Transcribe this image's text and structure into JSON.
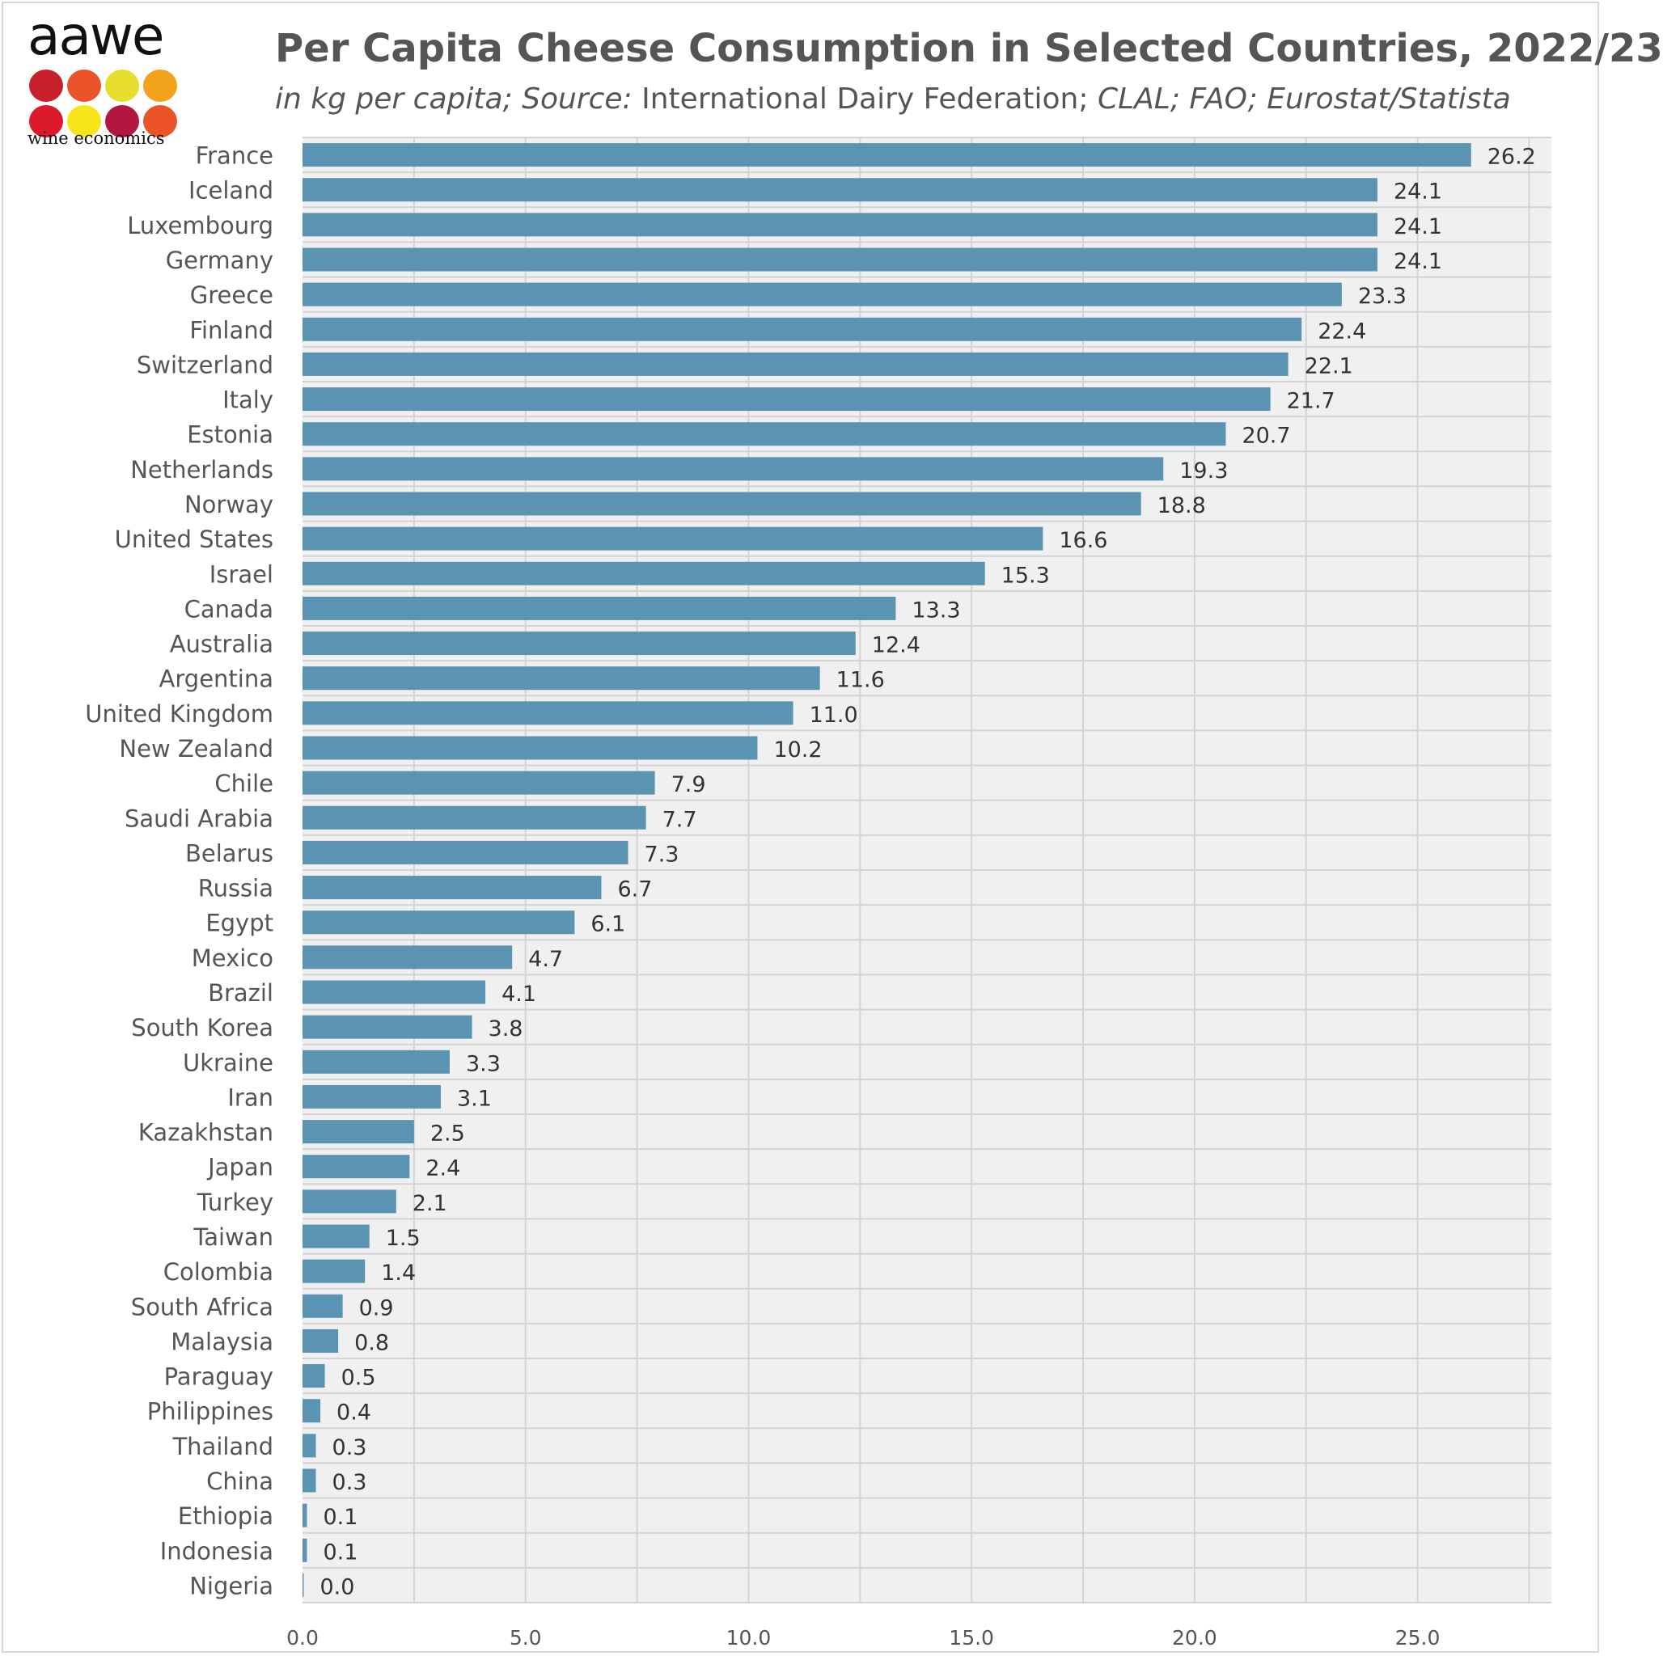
{
  "logo": {
    "word": "aawe",
    "tagline": "wine economics",
    "dot_colors": [
      "#c8202a",
      "#ea5428",
      "#e6dd2c",
      "#f3a21c",
      "#dc1a2a",
      "#f6e51b",
      "#b2183f",
      "#ea5428"
    ]
  },
  "header": {
    "title": "Per Capita Cheese Consumption in Selected Countries, 2022/23",
    "subtitle_part1": "in kg per capita; Source: ",
    "subtitle_part2": "International Dairy Federation; ",
    "subtitle_part3": "CLAL; FAO; Eurostat/Statista"
  },
  "colors": {
    "bar": "#5b93b2",
    "plot_background": "#f0f0f0",
    "grid": "#d4d4d4",
    "text": "#555555"
  },
  "chart_data": {
    "type": "bar",
    "orientation": "horizontal",
    "title": "Per Capita Cheese Consumption in Selected Countries, 2022/23",
    "xlabel": "",
    "ylabel": "",
    "xlim": [
      0,
      28
    ],
    "xticks": [
      "0.0",
      "5.0",
      "10.0",
      "15.0",
      "20.0",
      "25.0"
    ],
    "grid": true,
    "legend": "none",
    "categories": [
      "France",
      "Iceland",
      "Luxembourg",
      "Germany",
      "Greece",
      "Finland",
      "Switzerland",
      "Italy",
      "Estonia",
      "Netherlands",
      "Norway",
      "United States",
      "Israel",
      "Canada",
      "Australia",
      "Argentina",
      "United Kingdom",
      "New Zealand",
      "Chile",
      "Saudi Arabia",
      "Belarus",
      "Russia",
      "Egypt",
      "Mexico",
      "Brazil",
      "South Korea",
      "Ukraine",
      "Iran",
      "Kazakhstan",
      "Japan",
      "Turkey",
      "Taiwan",
      "Colombia",
      "South Africa",
      "Malaysia",
      "Paraguay",
      "Philippines",
      "Thailand",
      "China",
      "Ethiopia",
      "Indonesia",
      "Nigeria"
    ],
    "values": [
      26.2,
      24.1,
      24.1,
      24.1,
      23.3,
      22.4,
      22.1,
      21.7,
      20.7,
      19.3,
      18.8,
      16.6,
      15.3,
      13.3,
      12.4,
      11.6,
      11.0,
      10.2,
      7.9,
      7.7,
      7.3,
      6.7,
      6.1,
      4.7,
      4.1,
      3.8,
      3.3,
      3.1,
      2.5,
      2.4,
      2.1,
      1.5,
      1.4,
      0.9,
      0.8,
      0.5,
      0.4,
      0.3,
      0.3,
      0.1,
      0.1,
      0.0
    ],
    "value_labels": [
      "26.2",
      "24.1",
      "24.1",
      "24.1",
      "23.3",
      "22.4",
      "22.1",
      "21.7",
      "20.7",
      "19.3",
      "18.8",
      "16.6",
      "15.3",
      "13.3",
      "12.4",
      "11.6",
      "11.0",
      "10.2",
      "7.9",
      "7.7",
      "7.3",
      "6.7",
      "6.1",
      "4.7",
      "4.1",
      "3.8",
      "3.3",
      "3.1",
      "2.5",
      "2.4",
      "2.1",
      "1.5",
      "1.4",
      "0.9",
      "0.8",
      "0.5",
      "0.4",
      "0.3",
      "0.3",
      "0.1",
      "0.1",
      "0.0"
    ]
  }
}
